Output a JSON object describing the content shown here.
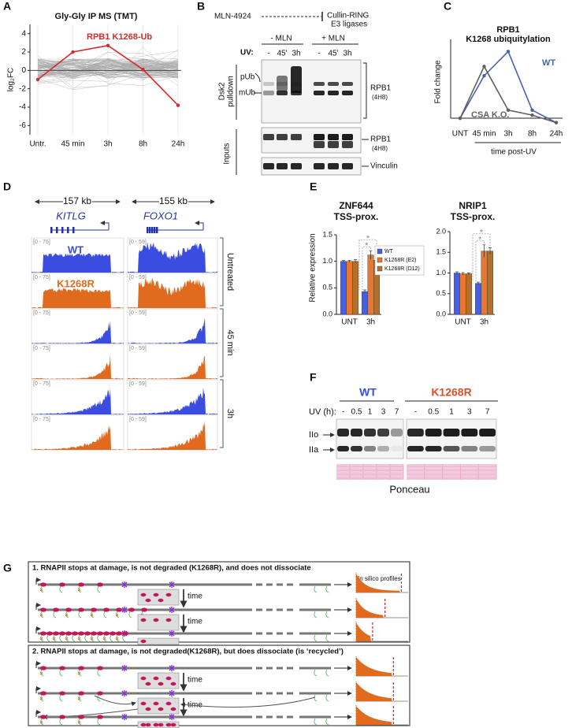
{
  "panel_labels": [
    "A",
    "B",
    "C",
    "D",
    "E",
    "F",
    "G"
  ],
  "chart_data": [
    {
      "type": "line",
      "title": "Gly-Gly IP MS (TMT)",
      "y_label": "log₂FC",
      "categories": [
        "Untr.",
        "45 min",
        "3h",
        "8h",
        "24h"
      ],
      "series": [
        {
          "name": "RPB1 K1268-Ub",
          "color": "#d42a2a",
          "values": [
            -1,
            2,
            2.7,
            0.1,
            -3.8
          ]
        }
      ],
      "background_color": "#a8a8a8",
      "ylim": [
        -7,
        5
      ],
      "yticks": [
        -6,
        -4,
        -2,
        0,
        2,
        4
      ]
    },
    {
      "type": "line",
      "title": "RPB1",
      "subtitle": "K1268 ubiquitylation",
      "y_label": "Fold change",
      "x_label": "time post-UV",
      "categories": [
        "UNT",
        "45 min",
        "3h",
        "8h",
        "24h"
      ],
      "series": [
        {
          "name": "WT",
          "color": "#4a62b0",
          "values": [
            1,
            7.8,
            11.7,
            2.3,
            0.3
          ]
        },
        {
          "name": "CSA K.O.",
          "color": "#606060",
          "values": [
            1,
            9.3,
            2.3,
            1.5,
            0.3
          ]
        }
      ],
      "ylim": [
        0,
        13
      ]
    },
    {
      "type": "bar",
      "title": "ZNF644",
      "subtitle": "TSS-prox.",
      "y_label": "Relative expression",
      "categories": [
        "UNT",
        "3h"
      ],
      "series": [
        {
          "name": "WT",
          "color": "#4a5fe0",
          "values": [
            1.0,
            0.43
          ],
          "errors": [
            0.02,
            0.03
          ]
        },
        {
          "name": "K1268R (E2)",
          "color": "#e8782e",
          "values": [
            1.0,
            1.12
          ],
          "errors": [
            0.02,
            0.08
          ]
        },
        {
          "name": "K1268R (D12)",
          "color": "#b56f2a",
          "values": [
            1.0,
            1.02
          ],
          "errors": [
            0.03,
            0.06
          ]
        }
      ],
      "ylim": [
        0,
        1.5
      ],
      "yticks": [
        {
          "value": 0,
          "label": "0.0"
        },
        0.5,
        {
          "value": 1,
          "label": "1.0"
        },
        1.5
      ],
      "annotations": [
        "*",
        "*"
      ],
      "legend": "right"
    },
    {
      "type": "bar",
      "title": "NRIP1",
      "subtitle": "TSS-prox.",
      "categories": [
        "UNT",
        "3h"
      ],
      "series": [
        {
          "color": "#4a5fe0",
          "values": [
            1.0,
            0.75
          ],
          "errors": [
            0.03,
            0.03
          ]
        },
        {
          "color": "#e8782e",
          "values": [
            0.98,
            1.53
          ],
          "errors": [
            0.03,
            0.15
          ]
        },
        {
          "color": "#b56f2a",
          "values": [
            0.98,
            1.53
          ],
          "errors": [
            0.02,
            0.08
          ]
        }
      ],
      "ylim": [
        0,
        2
      ],
      "yticks": [
        {
          "value": 0,
          "label": "0.0"
        },
        0.5,
        {
          "value": 1,
          "label": "1.0"
        },
        1.5,
        {
          "value": 2,
          "label": "2.0"
        }
      ],
      "annotations": [
        "*",
        "*"
      ]
    }
  ],
  "panel_b": {
    "treatment": "MLN-4924",
    "target": [
      "Cullin-RING",
      "E3 ligases"
    ],
    "groups": [
      "- MLN",
      "+ MLN"
    ],
    "uv_label": "UV:",
    "lanes": [
      "-",
      "45'",
      "3h",
      "-",
      "45'",
      "3h"
    ],
    "pulldown_label": [
      "Dsk2",
      "pulldown"
    ],
    "inputs_label": "Inputs",
    "bands": [
      "pUb",
      "mUb"
    ],
    "antibody": [
      "RPB1",
      "(4H8)"
    ],
    "loading": "Vinculin"
  },
  "panel_d": {
    "sizes": [
      "157 kb",
      "155 kb"
    ],
    "genes": [
      "KITLG",
      "FOXO1"
    ],
    "scales": [
      "[0 - 75]",
      "[0 - 59]"
    ],
    "tracks": [
      "WT",
      "K1268R"
    ],
    "conditions": [
      "Untreated",
      "45 min",
      "3h"
    ]
  },
  "panel_f": {
    "groups": [
      "WT",
      "K1268R"
    ],
    "uv_label": "UV (h):",
    "lanes": [
      "-",
      "0.5",
      "1",
      "3",
      "7"
    ],
    "forms": [
      "IIo",
      "IIa"
    ],
    "stain": "Ponceau"
  },
  "panel_g": {
    "scenarios": [
      "1. RNAPII stops at damage, is not degraded (K1268R), and does not dissociate",
      "2. RNAPII stops at damage, is not degraded(K1268R), but does dissociate (is ‘recycled’)"
    ],
    "time_label": "time",
    "profiles_label": "In silico profiles"
  }
}
